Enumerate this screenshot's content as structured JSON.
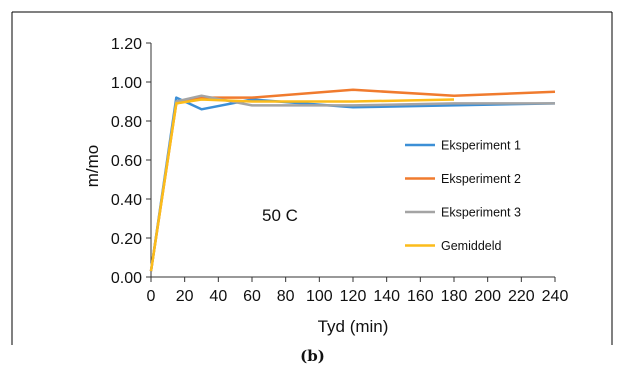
{
  "caption": "(b)",
  "chart_data": {
    "type": "line",
    "title": "",
    "annotation": "50 C",
    "xlabel": "Tyd (min)",
    "ylabel": "m/mo",
    "xlim": [
      0,
      240
    ],
    "ylim": [
      0,
      1.2
    ],
    "x_ticks": [
      "0",
      "20",
      "40",
      "60",
      "80",
      "100",
      "120",
      "140",
      "160",
      "180",
      "200",
      "220",
      "240"
    ],
    "y_ticks": [
      "0.00",
      "0.20",
      "0.40",
      "0.60",
      "0.80",
      "1.00",
      "1.20"
    ],
    "grid": false,
    "legend_position": "right",
    "series": [
      {
        "name": "Eksperiment 1",
        "color": "#3c8fd6",
        "points": [
          [
            0,
            0.03
          ],
          [
            15,
            0.92
          ],
          [
            30,
            0.86
          ],
          [
            60,
            0.91
          ],
          [
            120,
            0.87
          ],
          [
            240,
            0.89
          ]
        ]
      },
      {
        "name": "Eksperiment 2",
        "color": "#f07b2e",
        "points": [
          [
            0,
            0.03
          ],
          [
            15,
            0.89
          ],
          [
            30,
            0.92
          ],
          [
            60,
            0.92
          ],
          [
            120,
            0.96
          ],
          [
            180,
            0.93
          ],
          [
            240,
            0.95
          ]
        ]
      },
      {
        "name": "Eksperiment 3",
        "color": "#a4a4a4",
        "points": [
          [
            0,
            0.03
          ],
          [
            15,
            0.9
          ],
          [
            30,
            0.93
          ],
          [
            60,
            0.88
          ],
          [
            120,
            0.88
          ],
          [
            180,
            0.89
          ],
          [
            240,
            0.89
          ]
        ]
      },
      {
        "name": "Gemiddeld",
        "color": "#fcbc1a",
        "points": [
          [
            0,
            0.03
          ],
          [
            15,
            0.89
          ],
          [
            30,
            0.91
          ],
          [
            60,
            0.9
          ],
          [
            120,
            0.9
          ],
          [
            180,
            0.91
          ]
        ]
      }
    ]
  }
}
